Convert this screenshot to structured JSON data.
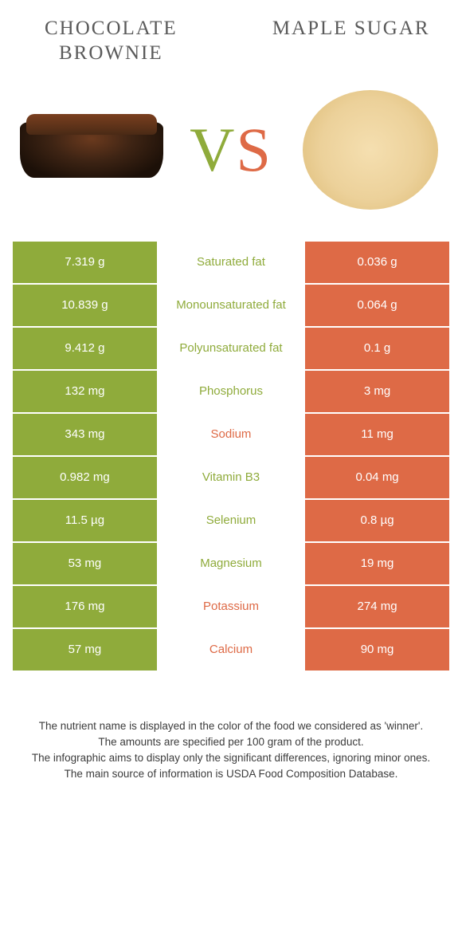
{
  "colors": {
    "left": "#8fab3b",
    "right": "#de6a46",
    "text_dark": "#5a5a5a"
  },
  "header": {
    "left_title": "CHOCOLATE BROWNIE",
    "right_title": "MAPLE SUGAR",
    "vs_v": "V",
    "vs_s": "S"
  },
  "rows": [
    {
      "left": "7.319 g",
      "label": "Saturated fat",
      "right": "0.036 g",
      "winner": "left"
    },
    {
      "left": "10.839 g",
      "label": "Monounsaturated fat",
      "right": "0.064 g",
      "winner": "left"
    },
    {
      "left": "9.412 g",
      "label": "Polyunsaturated fat",
      "right": "0.1 g",
      "winner": "left"
    },
    {
      "left": "132 mg",
      "label": "Phosphorus",
      "right": "3 mg",
      "winner": "left"
    },
    {
      "left": "343 mg",
      "label": "Sodium",
      "right": "11 mg",
      "winner": "right"
    },
    {
      "left": "0.982 mg",
      "label": "Vitamin B3",
      "right": "0.04 mg",
      "winner": "left"
    },
    {
      "left": "11.5 µg",
      "label": "Selenium",
      "right": "0.8 µg",
      "winner": "left"
    },
    {
      "left": "53 mg",
      "label": "Magnesium",
      "right": "19 mg",
      "winner": "left"
    },
    {
      "left": "176 mg",
      "label": "Potassium",
      "right": "274 mg",
      "winner": "right"
    },
    {
      "left": "57 mg",
      "label": "Calcium",
      "right": "90 mg",
      "winner": "right"
    }
  ],
  "footnotes": {
    "l1": "The nutrient name is displayed in the color of the food we considered as 'winner'.",
    "l2": "The amounts are specified per 100 gram of the product.",
    "l3": "The infographic aims to display only the significant differences, ignoring minor ones.",
    "l4": "The main source of information is USDA Food Composition Database."
  }
}
